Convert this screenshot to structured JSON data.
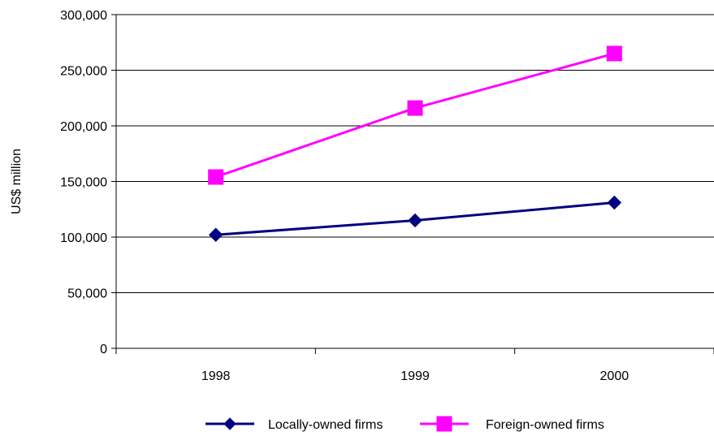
{
  "chart_data": {
    "type": "line",
    "title": "",
    "xlabel": "",
    "ylabel": "US$ million",
    "categories": [
      "1998",
      "1999",
      "2000"
    ],
    "ylim": [
      0,
      300000
    ],
    "yticks": [
      0,
      50000,
      100000,
      150000,
      200000,
      250000,
      300000
    ],
    "ytick_labels": [
      "0",
      "50,000",
      "100,000",
      "150,000",
      "200,000",
      "250,000",
      "300,000"
    ],
    "grid": true,
    "legend_position": "bottom",
    "series": [
      {
        "name": "Locally-owned firms",
        "values": [
          102000,
          115000,
          131000
        ],
        "color": "#000080",
        "marker": "diamond"
      },
      {
        "name": "Foreign-owned firms",
        "values": [
          154000,
          216000,
          265000
        ],
        "color": "#FF00FF",
        "marker": "square"
      }
    ]
  }
}
